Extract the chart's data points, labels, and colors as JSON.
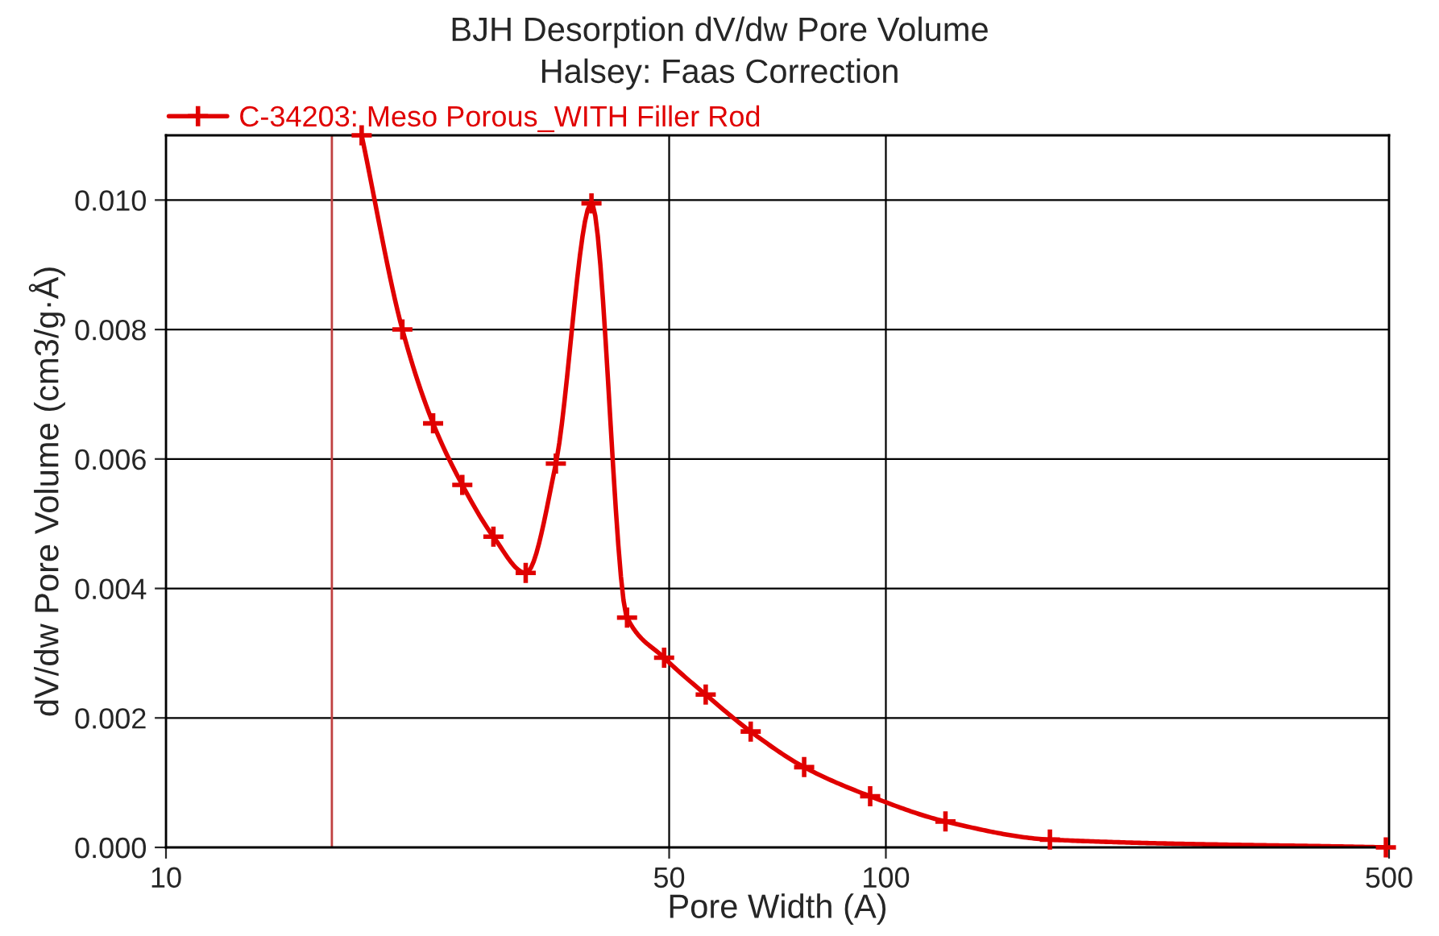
{
  "chart_data": {
    "type": "line",
    "title": "BJH Desorption dV/dw Pore Volume",
    "subtitle": "Halsey: Faas Correction",
    "xlabel": "Pore Width (A)",
    "ylabel": "dV/dw Pore Volume (cm3/g·Å)",
    "log": "x",
    "xlim": [
      10,
      500
    ],
    "xticks": [
      10,
      50,
      100,
      500
    ],
    "ylim": [
      0,
      0.011
    ],
    "yticks": [
      {
        "value": 0,
        "label": "0.000"
      },
      {
        "value": 0.002,
        "label": "0.002"
      },
      {
        "value": 0.004,
        "label": "0.004"
      },
      {
        "value": 0.006,
        "label": "0.006"
      },
      {
        "value": 0.008,
        "label": "0.008"
      },
      {
        "value": 0.01,
        "label": "0.010"
      }
    ],
    "grid": true,
    "legend": "top left",
    "marker": "cross",
    "line_style": "solid",
    "ref_lines": [
      {
        "axis": "x",
        "value": 17,
        "label": null,
        "color": "#c04040"
      }
    ],
    "series": [
      {
        "name": "C-34203: Meso Porous_WITH Filler Rod",
        "color": "#e00000",
        "x": [
          18.7,
          21.3,
          23.5,
          25.8,
          28.5,
          31.6,
          34.8,
          39.0,
          43.7,
          49.2,
          56.2,
          64.9,
          77.0,
          95.1,
          121,
          169,
          495
        ],
        "values": [
          0.011,
          0.008,
          0.00655,
          0.0056,
          0.0048,
          0.00424,
          0.00593,
          0.00995,
          0.00355,
          0.00293,
          0.00236,
          0.00179,
          0.00124,
          0.00079,
          0.0004,
          0.00012,
          0.0
        ]
      }
    ]
  }
}
